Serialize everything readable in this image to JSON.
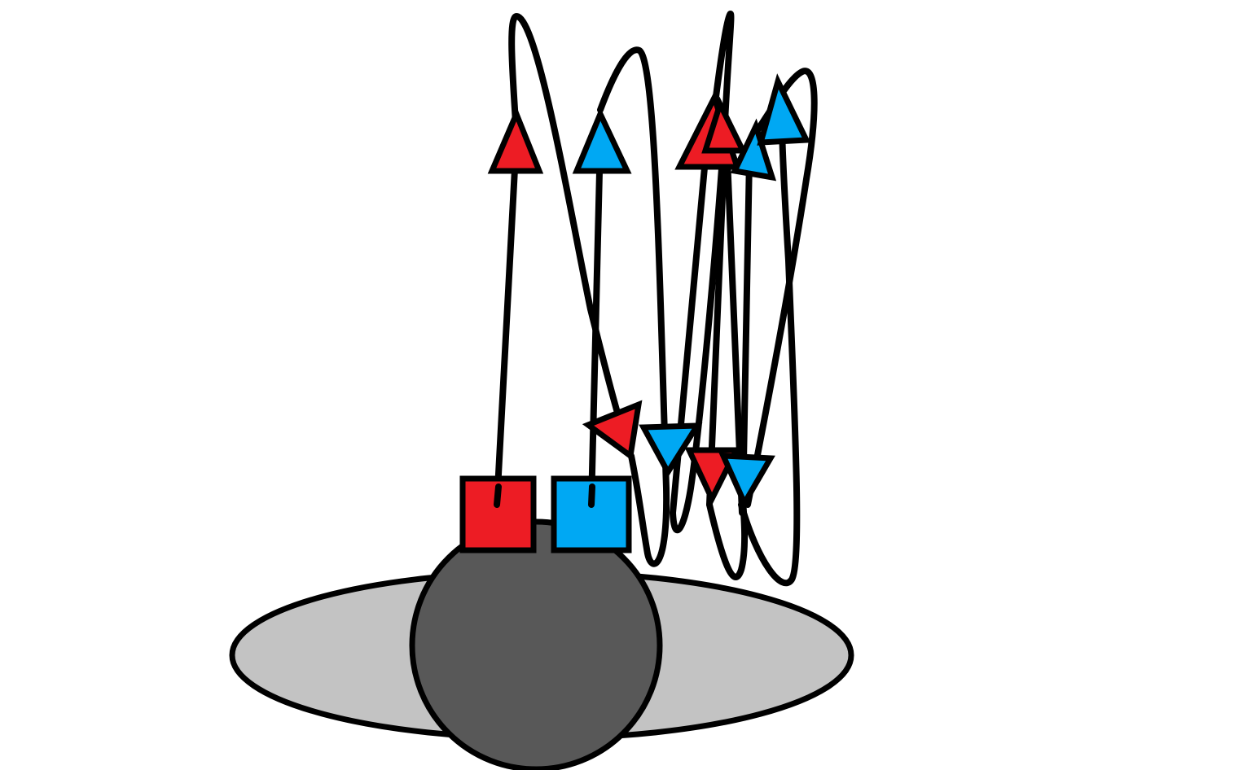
{
  "diagram": {
    "colors": {
      "red": "#ed1c24",
      "blue": "#00a8f3",
      "black": "#000000",
      "base_disc": "#c3c3c3",
      "sphere": "#585858",
      "background": "#ffffff"
    },
    "nodes": [
      {
        "name": "red-square",
        "shape": "square",
        "color": "red"
      },
      {
        "name": "blue-square",
        "shape": "square",
        "color": "blue"
      },
      {
        "name": "sphere",
        "shape": "circle",
        "color": "sphere"
      },
      {
        "name": "base-disc",
        "shape": "ellipse",
        "color": "base_disc"
      }
    ],
    "arrowheads": [
      {
        "name": "red-arrowhead-up-1",
        "direction": "up",
        "color": "red"
      },
      {
        "name": "blue-arrowhead-up-1",
        "direction": "up",
        "color": "blue"
      },
      {
        "name": "red-arrowhead-up-2",
        "direction": "up",
        "color": "red"
      },
      {
        "name": "red-arrowhead-up-3",
        "direction": "up",
        "color": "red"
      },
      {
        "name": "blue-arrowhead-up-2",
        "direction": "up",
        "color": "blue"
      },
      {
        "name": "blue-arrowhead-up-3",
        "direction": "up",
        "color": "blue"
      },
      {
        "name": "red-arrowhead-left",
        "direction": "left",
        "color": "red"
      },
      {
        "name": "blue-arrowhead-down-1",
        "direction": "down",
        "color": "blue"
      },
      {
        "name": "red-arrowhead-down",
        "direction": "down",
        "color": "red"
      },
      {
        "name": "blue-arrowhead-down-2",
        "direction": "down",
        "color": "blue"
      }
    ]
  }
}
